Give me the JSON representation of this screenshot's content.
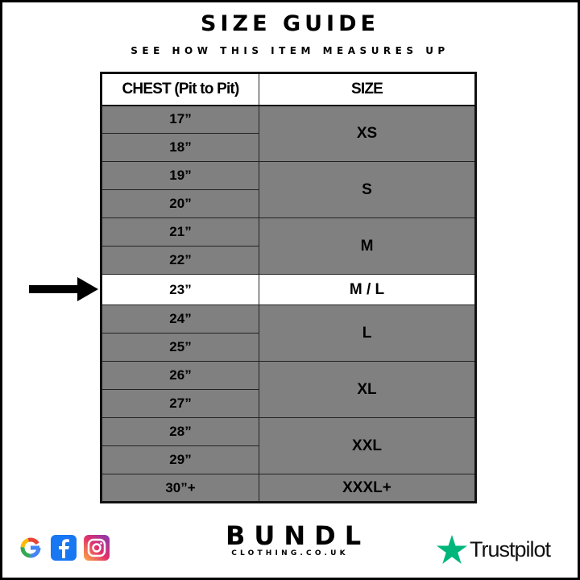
{
  "header": {
    "title": "SIZE GUIDE",
    "subtitle": "SEE HOW THIS ITEM MEASURES UP"
  },
  "table": {
    "columns": [
      "CHEST (Pit to Pit)",
      "SIZE"
    ],
    "groups": [
      {
        "size": "XS",
        "chest": [
          "17”",
          "18”"
        ]
      },
      {
        "size": "S",
        "chest": [
          "19”",
          "20”"
        ]
      },
      {
        "size": "M",
        "chest": [
          "21”",
          "22”"
        ]
      },
      {
        "size": "M / L",
        "chest": [
          "23”"
        ],
        "highlighted": true
      },
      {
        "size": "L",
        "chest": [
          "24”",
          "25”"
        ]
      },
      {
        "size": "XL",
        "chest": [
          "26”",
          "27”"
        ]
      },
      {
        "size": "XXL",
        "chest": [
          "28”",
          "29”"
        ]
      },
      {
        "size": "XXXL+",
        "chest": [
          "30”+"
        ]
      }
    ],
    "row_color": "#808080",
    "highlight_color": "#ffffff"
  },
  "indicator": {
    "icon": "arrow-right-icon",
    "points_to": "23”"
  },
  "footer": {
    "social_icons": [
      "google-icon",
      "facebook-icon",
      "instagram-icon"
    ],
    "brand": {
      "name": "BUNDL",
      "url_text": "CLOTHING.CO.UK"
    },
    "trustpilot": {
      "label": "Trustpilot",
      "star_color": "#00b67a"
    }
  }
}
